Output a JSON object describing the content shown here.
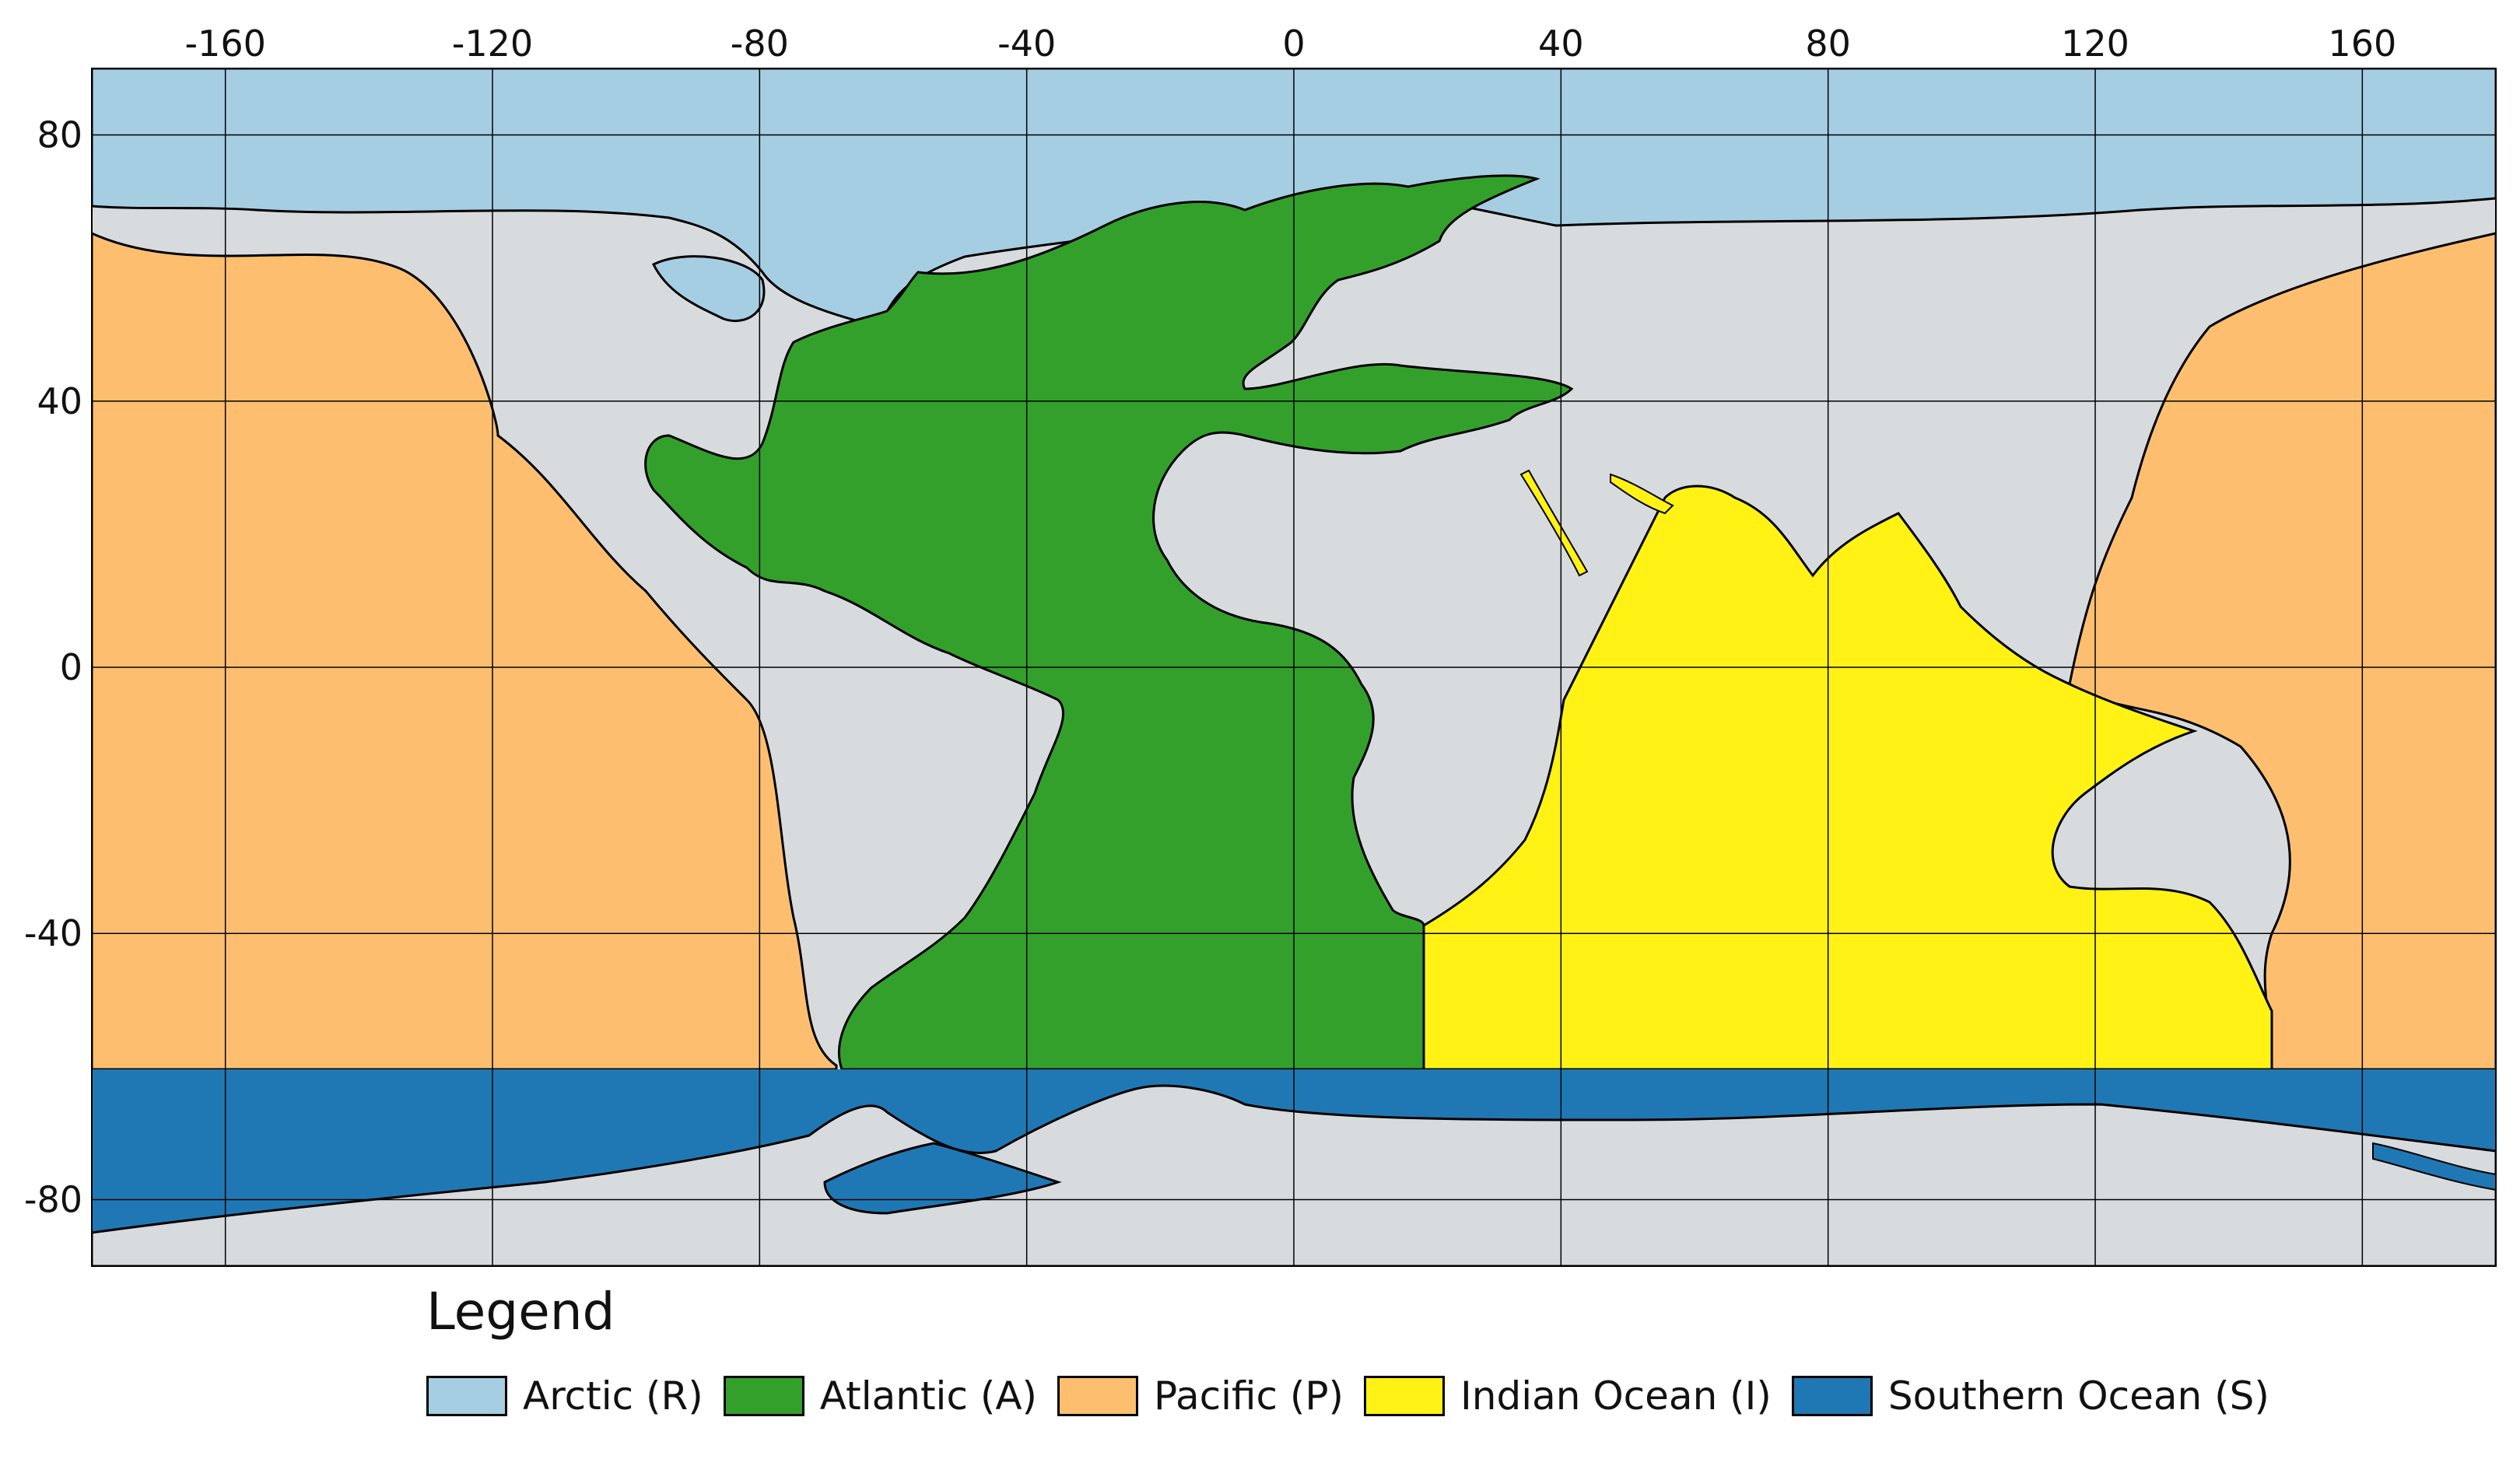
{
  "colors": {
    "land": "#d8dbde",
    "arctic": "#a6cee3",
    "atlantic": "#33a02c",
    "pacific": "#fdbf6f",
    "indian": "#fff214",
    "southern": "#1f78b4",
    "grid": "#000000"
  },
  "axes": {
    "x_ticks": [
      "-160",
      "-120",
      "-80",
      "-40",
      "0",
      "40",
      "80",
      "120",
      "160"
    ],
    "y_ticks": [
      "80",
      "40",
      "0",
      "-40",
      "-80"
    ]
  },
  "legend": {
    "title": "Legend",
    "items": [
      {
        "label": "Arctic (R)",
        "color": "#a6cee3"
      },
      {
        "label": "Atlantic (A)",
        "color": "#33a02c"
      },
      {
        "label": "Pacific (P)",
        "color": "#fdbf6f"
      },
      {
        "label": "Indian Ocean (I)",
        "color": "#fff214"
      },
      {
        "label": "Southern Ocean (S)",
        "color": "#1f78b4"
      }
    ]
  }
}
